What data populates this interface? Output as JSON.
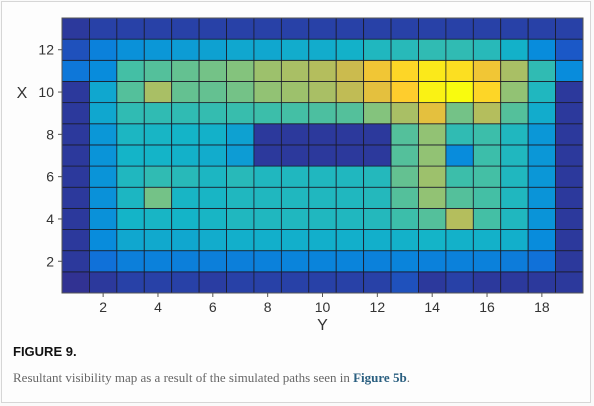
{
  "figure": {
    "label": "FIGURE 9.",
    "caption_text": "Resultant visibility map as a result of the simulated paths seen in ",
    "caption_link": "Figure 5b",
    "caption_end": "."
  },
  "chart_data": {
    "type": "heatmap",
    "xlabel": "Y",
    "ylabel": "X",
    "x_ticks": [
      2,
      4,
      6,
      8,
      10,
      12,
      14,
      16,
      18
    ],
    "y_ticks": [
      2,
      4,
      6,
      8,
      10,
      12
    ],
    "x_values": [
      1,
      2,
      3,
      4,
      5,
      6,
      7,
      8,
      9,
      10,
      11,
      12,
      13,
      14,
      15,
      16,
      17,
      18,
      19
    ],
    "y_values": [
      1,
      2,
      3,
      4,
      5,
      6,
      7,
      8,
      9,
      10,
      11,
      12,
      13
    ],
    "colormap": "parula",
    "value_range": [
      0,
      1
    ],
    "grid": true,
    "values": [
      [
        0.02,
        0.04,
        0.06,
        0.06,
        0.06,
        0.05,
        0.06,
        0.06,
        0.06,
        0.06,
        0.06,
        0.06,
        0.1,
        0.04,
        0.06,
        0.04,
        0.04,
        0.04,
        0.04
      ],
      [
        0.04,
        0.2,
        0.25,
        0.26,
        0.25,
        0.25,
        0.25,
        0.26,
        0.27,
        0.27,
        0.27,
        0.26,
        0.27,
        0.26,
        0.26,
        0.26,
        0.24,
        0.2,
        0.04
      ],
      [
        0.04,
        0.3,
        0.4,
        0.41,
        0.4,
        0.42,
        0.43,
        0.43,
        0.43,
        0.43,
        0.43,
        0.43,
        0.44,
        0.45,
        0.44,
        0.44,
        0.43,
        0.3,
        0.04
      ],
      [
        0.04,
        0.32,
        0.45,
        0.46,
        0.45,
        0.46,
        0.48,
        0.48,
        0.48,
        0.48,
        0.48,
        0.49,
        0.55,
        0.58,
        0.72,
        0.56,
        0.48,
        0.33,
        0.04
      ],
      [
        0.04,
        0.32,
        0.47,
        0.62,
        0.46,
        0.46,
        0.48,
        0.48,
        0.48,
        0.48,
        0.48,
        0.49,
        0.58,
        0.66,
        0.58,
        0.56,
        0.48,
        0.33,
        0.04
      ],
      [
        0.04,
        0.33,
        0.48,
        0.52,
        0.5,
        0.47,
        0.5,
        0.48,
        0.48,
        0.48,
        0.48,
        0.49,
        0.6,
        0.68,
        0.55,
        0.56,
        0.48,
        0.34,
        0.04
      ],
      [
        0.04,
        0.33,
        0.45,
        0.45,
        0.44,
        0.42,
        0.36,
        0.04,
        0.04,
        0.04,
        0.04,
        0.04,
        0.58,
        0.66,
        0.3,
        0.55,
        0.48,
        0.34,
        0.04
      ],
      [
        0.04,
        0.34,
        0.47,
        0.46,
        0.45,
        0.44,
        0.38,
        0.04,
        0.04,
        0.04,
        0.04,
        0.04,
        0.58,
        0.66,
        0.52,
        0.55,
        0.48,
        0.34,
        0.04
      ],
      [
        0.04,
        0.4,
        0.52,
        0.52,
        0.52,
        0.53,
        0.54,
        0.55,
        0.56,
        0.57,
        0.58,
        0.64,
        0.7,
        0.82,
        0.62,
        0.72,
        0.58,
        0.42,
        0.04
      ],
      [
        0.04,
        0.4,
        0.58,
        0.7,
        0.6,
        0.6,
        0.62,
        0.66,
        0.68,
        0.7,
        0.74,
        0.82,
        0.9,
        0.98,
        1.0,
        0.92,
        0.66,
        0.48,
        0.04
      ],
      [
        0.22,
        0.3,
        0.56,
        0.58,
        0.6,
        0.62,
        0.64,
        0.68,
        0.7,
        0.72,
        0.76,
        0.86,
        0.92,
        0.96,
        0.94,
        0.86,
        0.7,
        0.52,
        0.3
      ],
      [
        0.1,
        0.26,
        0.32,
        0.34,
        0.36,
        0.38,
        0.4,
        0.4,
        0.42,
        0.42,
        0.44,
        0.48,
        0.5,
        0.52,
        0.52,
        0.5,
        0.44,
        0.3,
        0.12
      ],
      [
        0.04,
        0.06,
        0.06,
        0.06,
        0.06,
        0.06,
        0.06,
        0.06,
        0.06,
        0.06,
        0.06,
        0.06,
        0.06,
        0.06,
        0.06,
        0.06,
        0.06,
        0.06,
        0.06
      ]
    ]
  }
}
